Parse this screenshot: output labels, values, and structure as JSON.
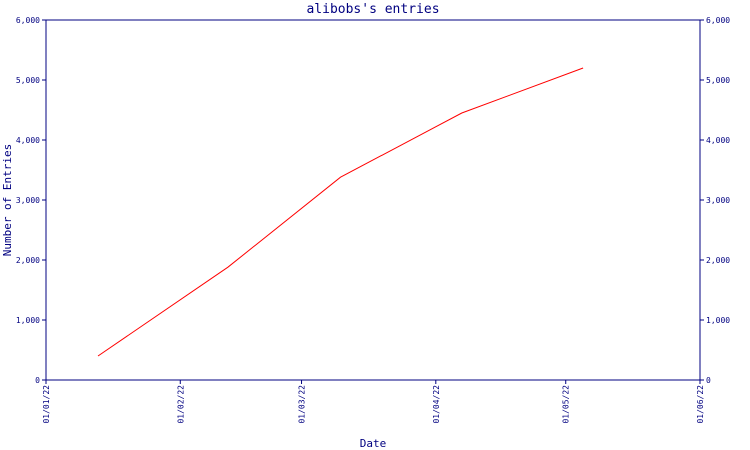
{
  "chart_data": {
    "type": "line",
    "title": "alibobs's entries",
    "xlabel": "Date",
    "ylabel": "Number of Entries",
    "x_tick_labels": [
      "01/01/22",
      "01/02/22",
      "01/03/22",
      "01/04/22",
      "01/05/22",
      "01/06/22"
    ],
    "x_tick_dates": [
      "2022-01-01",
      "2022-02-01",
      "2022-03-01",
      "2022-04-01",
      "2022-05-01",
      "2022-06-01"
    ],
    "y_tick_labels": [
      "0",
      "1,000",
      "2,000",
      "3,000",
      "4,000",
      "5,000",
      "6,000"
    ],
    "y_tick_values": [
      0,
      1000,
      2000,
      3000,
      4000,
      5000,
      6000
    ],
    "xlim": [
      "2022-01-01",
      "2022-06-01"
    ],
    "ylim": [
      0,
      6000
    ],
    "series": [
      {
        "color": "#ff0000",
        "points": [
          {
            "x": "2022-01-13",
            "y": 400
          },
          {
            "x": "2022-02-12",
            "y": 1880
          },
          {
            "x": "2022-03-10",
            "y": 3380
          },
          {
            "x": "2022-04-07",
            "y": 4450
          },
          {
            "x": "2022-05-05",
            "y": 5200
          }
        ]
      }
    ],
    "grid": false,
    "axis_color": "#000080"
  }
}
